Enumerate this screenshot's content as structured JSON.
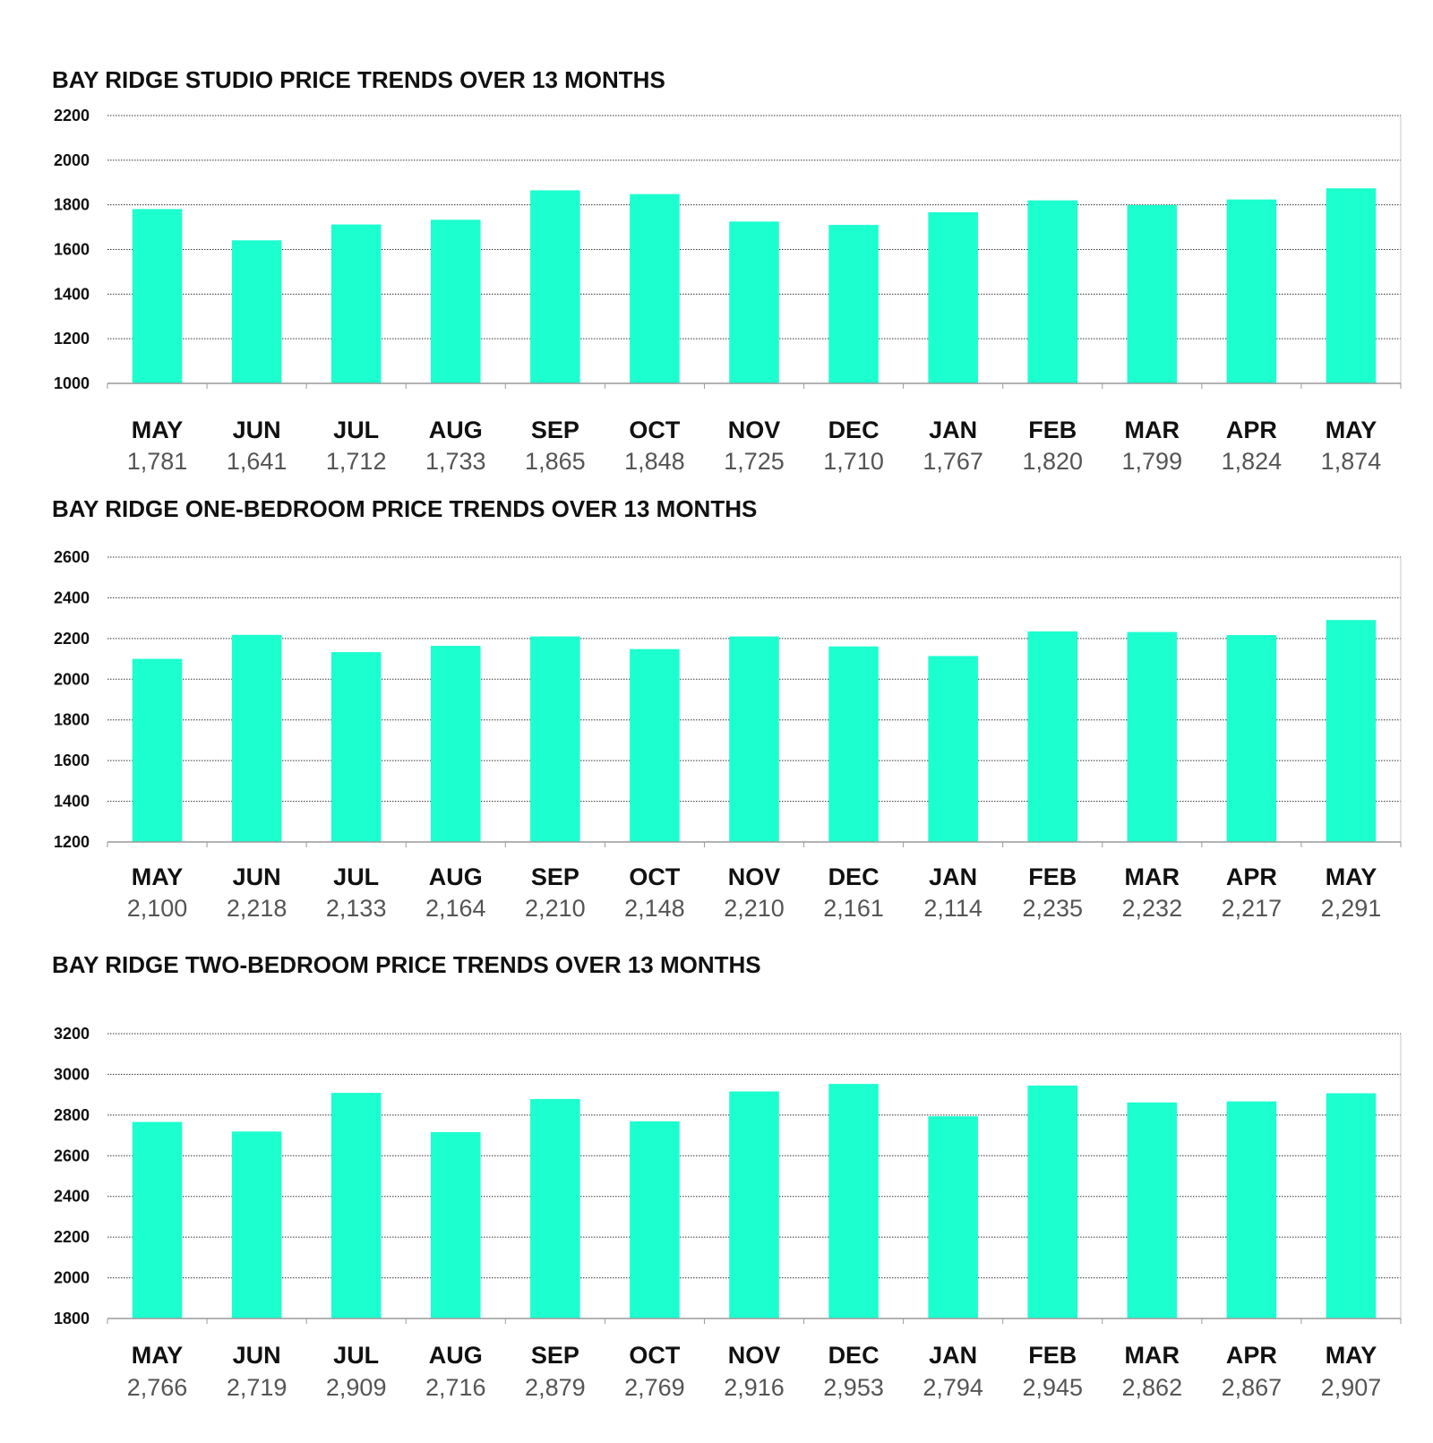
{
  "chart_data": [
    {
      "type": "bar",
      "title": "BAY RIDGE STUDIO PRICE TRENDS OVER 13 MONTHS",
      "categories": [
        "MAY",
        "JUN",
        "JUL",
        "AUG",
        "SEP",
        "OCT",
        "NOV",
        "DEC",
        "JAN",
        "FEB",
        "MAR",
        "APR",
        "MAY"
      ],
      "values": [
        1781,
        1641,
        1712,
        1733,
        1865,
        1848,
        1725,
        1710,
        1767,
        1820,
        1799,
        1824,
        1874
      ],
      "value_labels": [
        "1,781",
        "1,641",
        "1,712",
        "1,733",
        "1,865",
        "1,848",
        "1,725",
        "1,710",
        "1,767",
        "1,820",
        "1,799",
        "1,824",
        "1,874"
      ],
      "ylim": [
        1000,
        2200
      ],
      "yticks": [
        "1000",
        "1200",
        "1400",
        "1600",
        "1800",
        "2000",
        "2200"
      ],
      "grid": true,
      "bar_color": "#1cffcf"
    },
    {
      "type": "bar",
      "title": "BAY RIDGE ONE-BEDROOM PRICE TRENDS OVER 13 MONTHS",
      "categories": [
        "MAY",
        "JUN",
        "JUL",
        "AUG",
        "SEP",
        "OCT",
        "NOV",
        "DEC",
        "JAN",
        "FEB",
        "MAR",
        "APR",
        "MAY"
      ],
      "values": [
        2100,
        2218,
        2133,
        2164,
        2210,
        2148,
        2210,
        2161,
        2114,
        2235,
        2232,
        2217,
        2291
      ],
      "value_labels": [
        "2,100",
        "2,218",
        "2,133",
        "2,164",
        "2,210",
        "2,148",
        "2,210",
        "2,161",
        "2,114",
        "2,235",
        "2,232",
        "2,217",
        "2,291"
      ],
      "ylim": [
        1200,
        2600
      ],
      "yticks": [
        "1200",
        "1400",
        "1600",
        "1800",
        "2000",
        "2200",
        "2400",
        "2600"
      ],
      "grid": true,
      "bar_color": "#1cffcf"
    },
    {
      "type": "bar",
      "title": "BAY RIDGE TWO-BEDROOM PRICE TRENDS OVER 13 MONTHS",
      "categories": [
        "MAY",
        "JUN",
        "JUL",
        "AUG",
        "SEP",
        "OCT",
        "NOV",
        "DEC",
        "JAN",
        "FEB",
        "MAR",
        "APR",
        "MAY"
      ],
      "values": [
        2766,
        2719,
        2909,
        2716,
        2879,
        2769,
        2916,
        2953,
        2794,
        2945,
        2862,
        2867,
        2907
      ],
      "value_labels": [
        "2,766",
        "2,719",
        "2,909",
        "2,716",
        "2,879",
        "2,769",
        "2,916",
        "2,953",
        "2,794",
        "2,945",
        "2,862",
        "2,867",
        "2,907"
      ],
      "ylim": [
        1800,
        3200
      ],
      "yticks": [
        "1800",
        "2000",
        "2200",
        "2400",
        "2600",
        "2800",
        "3000",
        "3200"
      ],
      "grid": true,
      "bar_color": "#1cffcf"
    }
  ]
}
